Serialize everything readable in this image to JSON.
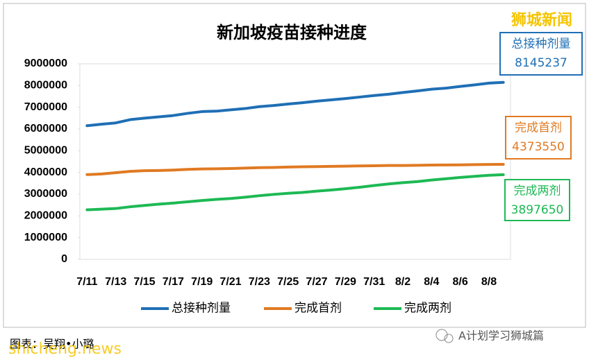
{
  "chart_data": {
    "type": "line",
    "title": "新加坡疫苗接种进度",
    "categories": [
      "7/11",
      null,
      "7/13",
      null,
      "7/15",
      null,
      "7/17",
      null,
      "7/19",
      null,
      "7/21",
      null,
      "7/23",
      null,
      "7/25",
      null,
      "7/27",
      null,
      "7/29",
      null,
      "7/31",
      null,
      "8/2",
      null,
      "8/4",
      null,
      "8/6",
      null,
      "8/8",
      null
    ],
    "series": [
      {
        "name": "总接种剂量",
        "color": "#1f6fb5",
        "values": [
          6150000,
          6220000,
          6280000,
          6430000,
          6500000,
          6560000,
          6620000,
          6720000,
          6800000,
          6820000,
          6880000,
          6940000,
          7030000,
          7080000,
          7150000,
          7210000,
          7280000,
          7340000,
          7400000,
          7470000,
          7540000,
          7600000,
          7680000,
          7750000,
          7830000,
          7880000,
          7960000,
          8030000,
          8110000,
          8145237
        ]
      },
      {
        "name": "完成首剂",
        "color": "#e07a22",
        "values": [
          3900000,
          3930000,
          3990000,
          4050000,
          4080000,
          4090000,
          4110000,
          4140000,
          4160000,
          4170000,
          4180000,
          4200000,
          4220000,
          4230000,
          4250000,
          4260000,
          4270000,
          4280000,
          4290000,
          4300000,
          4310000,
          4320000,
          4320000,
          4330000,
          4340000,
          4345000,
          4350000,
          4360000,
          4370000,
          4373550
        ]
      },
      {
        "name": "完成两剂",
        "color": "#1db954",
        "values": [
          2280000,
          2310000,
          2340000,
          2420000,
          2480000,
          2540000,
          2590000,
          2650000,
          2710000,
          2760000,
          2800000,
          2860000,
          2930000,
          2990000,
          3040000,
          3080000,
          3140000,
          3190000,
          3250000,
          3320000,
          3400000,
          3470000,
          3530000,
          3580000,
          3650000,
          3710000,
          3770000,
          3820000,
          3870000,
          3897650
        ]
      }
    ],
    "ylim": [
      0,
      9000000
    ],
    "yticks": [
      0,
      1000000,
      2000000,
      3000000,
      4000000,
      5000000,
      6000000,
      7000000,
      8000000,
      9000000
    ],
    "grid": false
  },
  "branding": {
    "logo": "狮城新闻",
    "credit": "图表：吴翔•小璐",
    "watermark": "shicheng.news",
    "account": "A计划学习狮城篇"
  }
}
